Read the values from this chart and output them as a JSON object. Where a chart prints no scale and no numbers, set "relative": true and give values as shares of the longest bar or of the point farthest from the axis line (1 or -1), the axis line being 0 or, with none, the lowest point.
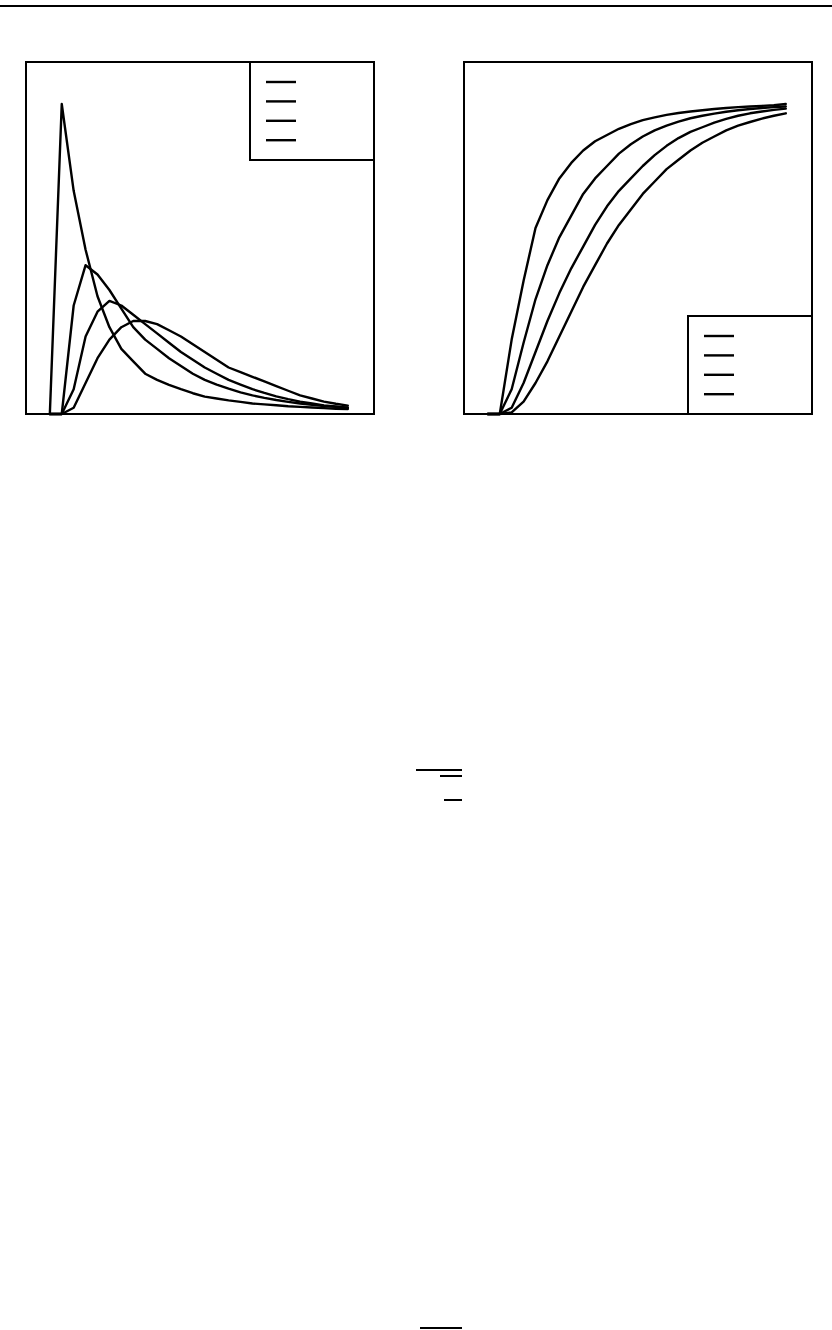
{
  "chart_data": [
    {
      "type": "line",
      "relative": true,
      "categories": [
        null,
        null,
        null,
        null,
        null,
        null,
        null,
        null,
        null,
        null,
        null,
        null,
        null,
        null,
        null,
        null,
        null,
        null,
        null,
        null,
        null,
        null,
        null,
        null,
        null,
        null
      ],
      "series": [
        {
          "color": "#000000",
          "values": [
            0,
            1,
            0.72,
            0.53,
            0.38,
            0.28,
            0.21,
            0.17,
            0.13,
            0.11,
            0.094,
            0.08,
            0.067,
            0.056,
            0.05,
            0.044,
            0.039,
            0.034,
            0.031,
            0.028,
            0.025,
            0.023,
            0.021,
            0.019,
            0.017,
            0.016
          ]
        },
        {
          "color": "#000000",
          "values": [
            0,
            0,
            0.35,
            0.48,
            0.45,
            0.4,
            0.34,
            0.28,
            0.24,
            0.21,
            0.18,
            0.155,
            0.13,
            0.11,
            0.095,
            0.082,
            0.07,
            0.06,
            0.052,
            0.045,
            0.039,
            0.034,
            0.03,
            0.026,
            0.023,
            0.02
          ]
        },
        {
          "color": "#000000",
          "values": [
            0,
            0,
            0.08,
            0.25,
            0.33,
            0.365,
            0.35,
            0.32,
            0.29,
            0.26,
            0.23,
            0.2,
            0.175,
            0.15,
            0.13,
            0.11,
            0.095,
            0.08,
            0.068,
            0.057,
            0.048,
            0.04,
            0.034,
            0.028,
            0.024,
            0.02
          ]
        },
        {
          "color": "#000000",
          "values": [
            0,
            0,
            0.02,
            0.1,
            0.18,
            0.24,
            0.28,
            0.3,
            0.3,
            0.29,
            0.27,
            0.25,
            0.225,
            0.2,
            0.175,
            0.15,
            0.135,
            0.12,
            0.105,
            0.09,
            0.075,
            0.06,
            0.05,
            0.04,
            0.033,
            0.027
          ]
        }
      ]
    },
    {
      "type": "line",
      "relative": true,
      "categories": [
        null,
        null,
        null,
        null,
        null,
        null,
        null,
        null,
        null,
        null,
        null,
        null,
        null,
        null,
        null,
        null,
        null,
        null,
        null,
        null,
        null,
        null,
        null,
        null,
        null,
        null
      ],
      "series": [
        {
          "color": "#000000",
          "values": [
            0,
            0,
            0.24,
            0.43,
            0.6,
            0.69,
            0.76,
            0.81,
            0.85,
            0.88,
            0.9,
            0.92,
            0.935,
            0.948,
            0.957,
            0.965,
            0.971,
            0.976,
            0.98,
            0.984,
            0.987,
            0.99,
            0.992,
            0.994,
            0.996,
            1
          ]
        },
        {
          "color": "#000000",
          "values": [
            0,
            0,
            0.08,
            0.23,
            0.37,
            0.48,
            0.57,
            0.64,
            0.71,
            0.76,
            0.8,
            0.84,
            0.87,
            0.895,
            0.915,
            0.93,
            0.943,
            0.954,
            0.962,
            0.969,
            0.975,
            0.98,
            0.984,
            0.987,
            0.99,
            0.992
          ]
        },
        {
          "color": "#000000",
          "values": [
            0,
            0,
            0.02,
            0.1,
            0.2,
            0.3,
            0.39,
            0.47,
            0.54,
            0.61,
            0.67,
            0.72,
            0.76,
            0.8,
            0.835,
            0.865,
            0.89,
            0.91,
            0.925,
            0.94,
            0.952,
            0.962,
            0.97,
            0.976,
            0.981,
            0.985
          ]
        },
        {
          "color": "#000000",
          "values": [
            0,
            0,
            0.005,
            0.04,
            0.1,
            0.17,
            0.25,
            0.33,
            0.41,
            0.48,
            0.55,
            0.61,
            0.66,
            0.71,
            0.75,
            0.79,
            0.82,
            0.85,
            0.875,
            0.895,
            0.915,
            0.93,
            0.942,
            0.953,
            0.962,
            0.97
          ]
        }
      ]
    }
  ]
}
